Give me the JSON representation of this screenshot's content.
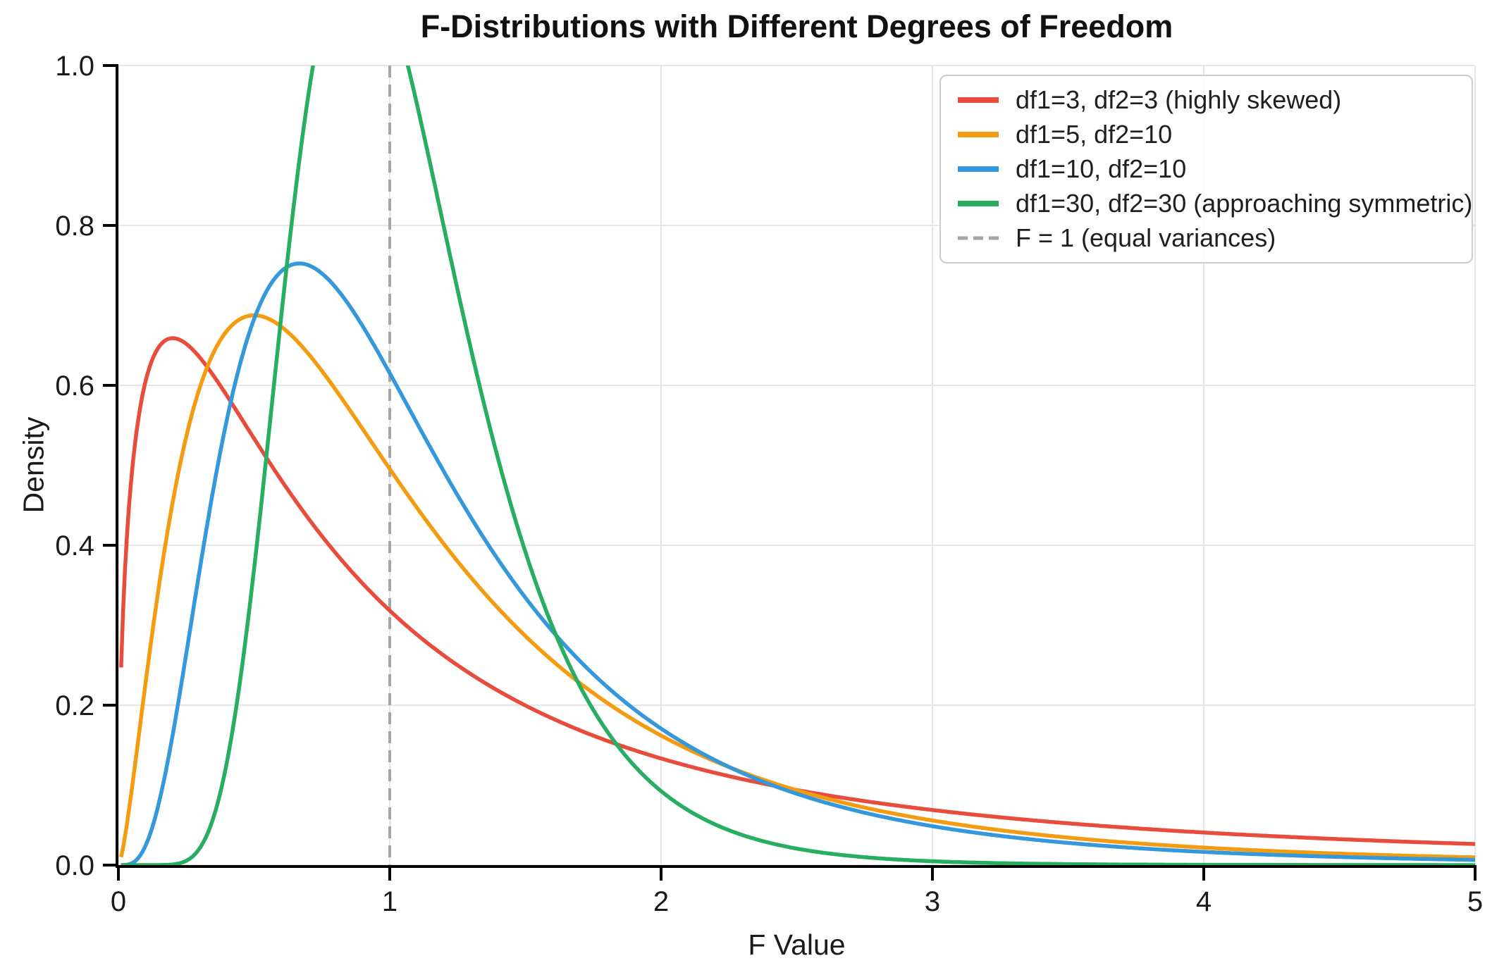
{
  "chart_data": {
    "type": "line",
    "title": "F-Distributions with Different Degrees of Freedom",
    "xlabel": "F Value",
    "ylabel": "Density",
    "xlim": [
      0,
      5
    ],
    "ylim": [
      0,
      1.0
    ],
    "x_ticks": [
      "0",
      "1",
      "2",
      "3",
      "4",
      "5"
    ],
    "y_ticks": [
      "0.0",
      "0.2",
      "0.4",
      "0.6",
      "0.8",
      "1.0"
    ],
    "grid": true,
    "legend_position": "upper right",
    "curve_x_start": 0.01,
    "sample_x": [
      0.25,
      0.5,
      1,
      1.5,
      2,
      2.5,
      3,
      3.5,
      4,
      4.5,
      5
    ],
    "series": [
      {
        "label": "df1=3, df2=3 (highly skewed)",
        "df1": 3,
        "df2": 3,
        "color": "#e74c3c",
        "peak": {
          "x": 0.2,
          "y": 0.659
        },
        "sample_y": [
          0.652,
          0.534,
          0.318,
          0.2,
          0.133,
          0.094,
          0.069,
          0.052,
          0.041,
          0.033,
          0.026
        ]
      },
      {
        "label": "df1=5, df2=10",
        "df1": 5,
        "df2": 10,
        "color": "#f39c12",
        "peak": {
          "x": 0.5,
          "y": 0.688
        },
        "sample_y": [
          0.536,
          0.688,
          0.495,
          0.286,
          0.162,
          0.094,
          0.056,
          0.034,
          0.022,
          0.014,
          0.01
        ]
      },
      {
        "label": "df1=10, df2=10",
        "df1": 10,
        "df2": 10,
        "color": "#3498db",
        "peak": {
          "x": 0.667,
          "y": 0.752
        },
        "sample_y": [
          0.264,
          0.683,
          0.615,
          0.334,
          0.171,
          0.089,
          0.049,
          0.028,
          0.017,
          0.01,
          0.007
        ]
      },
      {
        "label": "df1=30, df2=30 (approaching symmetric)",
        "df1": 30,
        "df2": 30,
        "color": "#27ae60",
        "peak": {
          "x": 0.875,
          "y": 1.158
        },
        "clipped_above_ylim": true,
        "sample_y": [
          0.005,
          0.371,
          1.084,
          0.392,
          0.093,
          0.021,
          0.005,
          0.001,
          0.0003,
          0.0001,
          3e-05
        ]
      }
    ],
    "vline": {
      "x": 1,
      "label": "F = 1 (equal variances)",
      "color": "#a6a6a6",
      "style": "dashed"
    },
    "style": {
      "background": "#ffffff",
      "grid_color": "#e6e6e6",
      "spine_color": "#000000",
      "tick_label_color": "#1a1a1a",
      "legend_border": "#cccccc",
      "curve_width": 5.5
    }
  }
}
